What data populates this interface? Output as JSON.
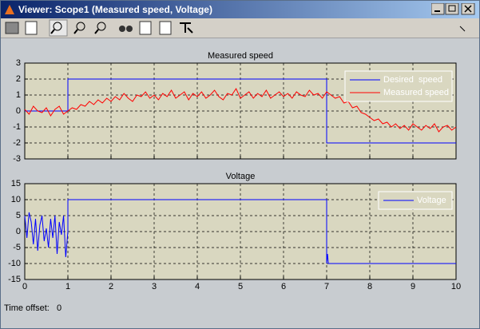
{
  "window": {
    "title": "Viewer: Scope1 (Measured speed, Voltage)"
  },
  "status": {
    "label": "Time offset:",
    "value": 0
  },
  "chart_data": [
    {
      "type": "line",
      "title": "Measured speed",
      "background": "#d9d7c0",
      "grid": true,
      "legend": "upper right",
      "show_xtick_labels": false,
      "xlim": [
        0,
        10
      ],
      "xticks": [
        0,
        1,
        2,
        3,
        4,
        5,
        6,
        7,
        8,
        9,
        10
      ],
      "ylim": [
        -3,
        3
      ],
      "yticks": [
        -3,
        -2,
        -1,
        0,
        1,
        2,
        3
      ],
      "series": [
        {
          "name": "Desired  speed",
          "color": "#0000ff",
          "x": [
            0,
            1,
            1,
            7,
            7,
            10
          ],
          "values": [
            0,
            0,
            2,
            2,
            -2,
            -2
          ]
        },
        {
          "name": "Measured speed",
          "color": "#ff0000",
          "x": [
            0,
            0.1,
            0.2,
            0.3,
            0.4,
            0.5,
            0.6,
            0.7,
            0.8,
            0.9,
            1,
            1.1,
            1.2,
            1.3,
            1.4,
            1.5,
            1.6,
            1.7,
            1.8,
            1.9,
            2,
            2.1,
            2.2,
            2.3,
            2.4,
            2.5,
            2.6,
            2.7,
            2.8,
            2.9,
            3,
            3.1,
            3.2,
            3.3,
            3.4,
            3.5,
            3.6,
            3.7,
            3.8,
            3.9,
            4,
            4.1,
            4.2,
            4.3,
            4.4,
            4.5,
            4.6,
            4.7,
            4.8,
            4.9,
            5,
            5.1,
            5.2,
            5.3,
            5.4,
            5.5,
            5.6,
            5.7,
            5.8,
            5.9,
            6,
            6.1,
            6.2,
            6.3,
            6.4,
            6.5,
            6.6,
            6.7,
            6.8,
            6.9,
            7,
            7.1,
            7.2,
            7.3,
            7.4,
            7.5,
            7.6,
            7.7,
            7.8,
            7.9,
            8,
            8.1,
            8.2,
            8.3,
            8.4,
            8.5,
            8.6,
            8.7,
            8.8,
            8.9,
            9,
            9.1,
            9.2,
            9.3,
            9.4,
            9.5,
            9.6,
            9.7,
            9.8,
            9.9,
            10
          ],
          "values": [
            0.1,
            -0.2,
            0.3,
            0,
            -0.1,
            0.2,
            -0.3,
            0.1,
            0.3,
            -0.2,
            0,
            0.2,
            0.1,
            0.4,
            0.3,
            0.6,
            0.4,
            0.7,
            0.5,
            0.8,
            0.6,
            0.9,
            0.7,
            1.1,
            0.8,
            0.6,
            1.0,
            0.9,
            1.2,
            0.8,
            1.0,
            0.7,
            1.1,
            0.9,
            1.3,
            0.8,
            1.0,
            1.2,
            0.7,
            1.1,
            0.9,
            1.2,
            0.8,
            1.0,
            1.3,
            0.9,
            0.7,
            1.1,
            1.0,
            1.4,
            0.8,
            1.0,
            1.2,
            0.8,
            1.1,
            0.9,
            1.3,
            0.8,
            1.0,
            1.2,
            0.9,
            1.1,
            0.8,
            1.2,
            1.0,
            0.9,
            1.3,
            1.0,
            1.1,
            0.8,
            1.2,
            1.0,
            0.8,
            0.9,
            0.5,
            0.6,
            0.2,
            0.3,
            -0.1,
            -0.2,
            -0.4,
            -0.6,
            -0.5,
            -0.8,
            -0.7,
            -1.0,
            -0.8,
            -1.1,
            -0.9,
            -1.2,
            -0.8,
            -1.0,
            -1.2,
            -0.9,
            -1.1,
            -0.8,
            -1.3,
            -1.0,
            -0.9,
            -1.2,
            -1.0
          ]
        }
      ]
    },
    {
      "type": "line",
      "title": "Voltage",
      "background": "#d9d7c0",
      "grid": true,
      "legend": "upper right",
      "show_xtick_labels": true,
      "xlim": [
        0,
        10
      ],
      "xticks": [
        0,
        1,
        2,
        3,
        4,
        5,
        6,
        7,
        8,
        9,
        10
      ],
      "ylim": [
        -15,
        15
      ],
      "yticks": [
        -15,
        -10,
        -5,
        0,
        5,
        10,
        15
      ],
      "series": [
        {
          "name": "Voltage",
          "color": "#0000ff",
          "x": [
            0,
            0.05,
            0.1,
            0.15,
            0.2,
            0.25,
            0.3,
            0.35,
            0.4,
            0.45,
            0.5,
            0.55,
            0.6,
            0.65,
            0.7,
            0.75,
            0.8,
            0.85,
            0.9,
            0.95,
            1,
            1,
            7,
            7,
            7.02,
            7.04,
            7.06,
            10
          ],
          "values": [
            5,
            -2,
            6,
            3,
            -4,
            4,
            -6,
            2,
            5,
            -3,
            1,
            -5,
            4,
            -2,
            5,
            -7,
            3,
            -1,
            5,
            -8,
            0,
            10,
            10,
            -10,
            -7,
            -10,
            -10,
            -10
          ]
        }
      ]
    }
  ]
}
